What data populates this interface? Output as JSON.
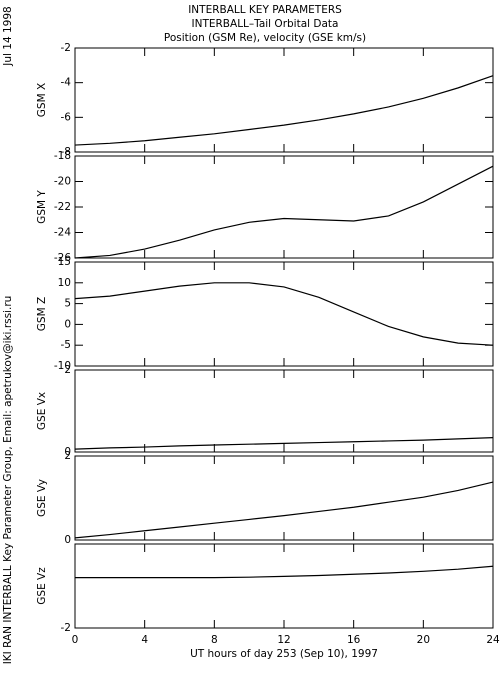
{
  "header": {
    "title": "INTERBALL KEY PARAMETERS",
    "subtitle": "INTERBALL–Tail Orbital Data",
    "subtitle2": "Position (GSM Re), velocity (GSE km/s)",
    "date": "Jul 14 1998",
    "credit": "IKI RAN INTERBALL Key Parameter Group, Email: apetrukov@iki.rssi.ru"
  },
  "chart_data": [
    {
      "type": "line",
      "ylabel": "GSM X",
      "x": [
        0,
        2,
        4,
        6,
        8,
        10,
        12,
        14,
        16,
        18,
        20,
        22,
        24
      ],
      "series": [
        {
          "color": "#000000",
          "values": [
            -7.6,
            -7.5,
            -7.35,
            -7.15,
            -6.95,
            -6.7,
            -6.45,
            -6.15,
            -5.8,
            -5.4,
            -4.9,
            -4.3,
            -3.6
          ]
        }
      ],
      "ylim": [
        -8,
        -2
      ],
      "yticks": [
        -8,
        -6,
        -4,
        -2
      ]
    },
    {
      "type": "line",
      "ylabel": "GSM Y",
      "x": [
        0,
        2,
        4,
        6,
        8,
        10,
        12,
        14,
        16,
        18,
        20,
        22,
        24
      ],
      "series": [
        {
          "color": "#000000",
          "values": [
            -26,
            -25.8,
            -25.3,
            -24.6,
            -23.8,
            -23.2,
            -22.9,
            -23.0,
            -23.1,
            -22.7,
            -21.6,
            -20.2,
            -18.8
          ]
        }
      ],
      "ylim": [
        -26,
        -18
      ],
      "yticks": [
        -26,
        -24,
        -22,
        -20,
        -18
      ]
    },
    {
      "type": "line",
      "ylabel": "GSM Z",
      "x": [
        0,
        2,
        4,
        6,
        8,
        10,
        12,
        14,
        16,
        18,
        20,
        22,
        24
      ],
      "series": [
        {
          "color": "#000000",
          "values": [
            6.2,
            6.8,
            8,
            9.2,
            10,
            10,
            9,
            6.5,
            3,
            -0.5,
            -3,
            -4.5,
            -5
          ]
        }
      ],
      "ylim": [
        -10,
        15
      ],
      "yticks": [
        -10,
        -5,
        0,
        5,
        10,
        15
      ]
    },
    {
      "type": "line",
      "ylabel": "GSE Vx",
      "x": [
        0,
        2,
        4,
        6,
        8,
        10,
        12,
        14,
        16,
        18,
        20,
        22,
        24
      ],
      "series": [
        {
          "color": "#000000",
          "values": [
            0.07,
            0.1,
            0.12,
            0.15,
            0.17,
            0.19,
            0.21,
            0.23,
            0.25,
            0.27,
            0.29,
            0.32,
            0.35
          ]
        }
      ],
      "ylim": [
        0,
        2
      ],
      "yticks": [
        0,
        2
      ]
    },
    {
      "type": "line",
      "ylabel": "GSE Vy",
      "x": [
        0,
        2,
        4,
        6,
        8,
        10,
        12,
        14,
        16,
        18,
        20,
        22,
        24
      ],
      "series": [
        {
          "color": "#000000",
          "values": [
            0.05,
            0.13,
            0.22,
            0.31,
            0.4,
            0.49,
            0.58,
            0.68,
            0.78,
            0.9,
            1.02,
            1.18,
            1.38
          ]
        }
      ],
      "ylim": [
        0,
        2
      ],
      "yticks": [
        0,
        2
      ]
    },
    {
      "type": "line",
      "ylabel": "GSE Vz",
      "x": [
        0,
        2,
        4,
        6,
        8,
        10,
        12,
        14,
        16,
        18,
        20,
        22,
        24
      ],
      "series": [
        {
          "color": "#000000",
          "values": [
            -0.8,
            -0.8,
            -0.8,
            -0.8,
            -0.8,
            -0.79,
            -0.77,
            -0.75,
            -0.72,
            -0.69,
            -0.65,
            -0.6,
            -0.53
          ]
        }
      ],
      "ylim": [
        -2,
        0
      ],
      "yticks": [
        -2
      ],
      "xlim": [
        0,
        24
      ],
      "xticks": [
        0,
        4,
        8,
        12,
        16,
        20,
        24
      ],
      "xlabel": "UT hours of day 253 (Sep 10), 1997"
    }
  ]
}
